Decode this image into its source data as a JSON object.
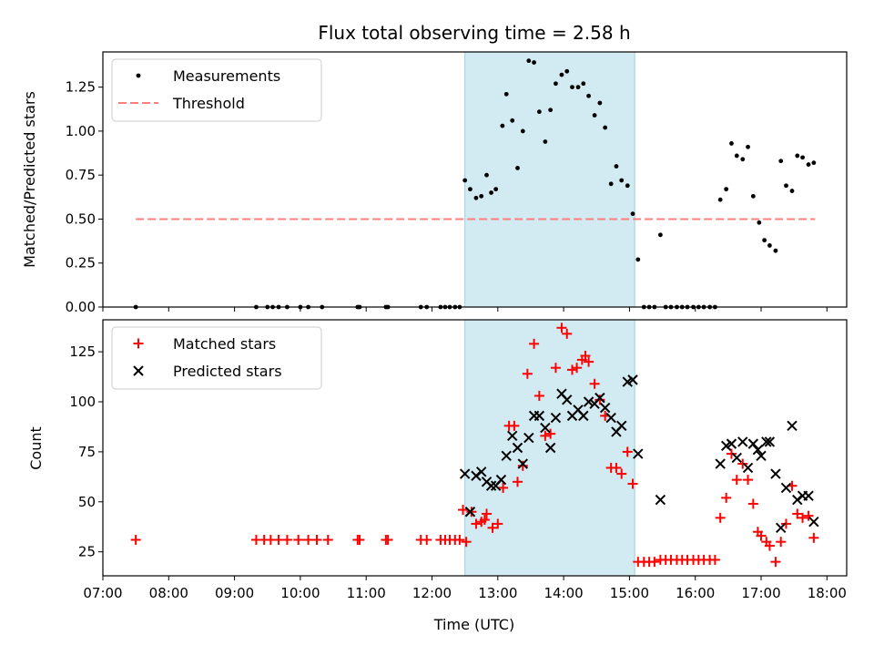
{
  "chart_data": {
    "type": "scatter",
    "title": "Flux total observing time = 2.58 h",
    "xlabel": "Time (UTC)",
    "x_tick_labels": [
      "07:00",
      "08:00",
      "09:00",
      "10:00",
      "11:00",
      "12:00",
      "13:00",
      "14:00",
      "15:00",
      "16:00",
      "17:00",
      "18:00"
    ],
    "x_ticks_hours": [
      7,
      8,
      9,
      10,
      11,
      12,
      13,
      14,
      15,
      16,
      17,
      18
    ],
    "xlim_hours": [
      7.0,
      18.3
    ],
    "shaded_span_hours": [
      12.5,
      15.08
    ],
    "shade_color": "#add8e6",
    "top_panel": {
      "ylabel": "Matched/Predicted stars",
      "ylim": [
        0,
        1.45
      ],
      "y_ticks": [
        0.0,
        0.25,
        0.5,
        0.75,
        1.0,
        1.25
      ],
      "y_tick_labels": [
        "0.00",
        "0.25",
        "0.50",
        "0.75",
        "1.00",
        "1.25"
      ],
      "legend": [
        "Measurements",
        "Threshold"
      ],
      "threshold": {
        "name": "Threshold",
        "y": 0.5,
        "x_range": [
          7.5,
          17.82
        ],
        "color": "#ff7f7f"
      },
      "measurements": {
        "name": "Measurements",
        "color": "#000000",
        "points": [
          [
            7.5,
            0
          ],
          [
            9.33,
            0
          ],
          [
            9.5,
            0
          ],
          [
            9.58,
            0
          ],
          [
            9.67,
            0
          ],
          [
            9.8,
            0
          ],
          [
            10.0,
            0
          ],
          [
            10.12,
            0
          ],
          [
            10.33,
            0
          ],
          [
            10.87,
            0
          ],
          [
            10.9,
            0
          ],
          [
            11.3,
            0
          ],
          [
            11.33,
            0
          ],
          [
            11.83,
            0
          ],
          [
            11.92,
            0
          ],
          [
            12.13,
            0
          ],
          [
            12.2,
            0
          ],
          [
            12.27,
            0
          ],
          [
            12.35,
            0
          ],
          [
            12.42,
            0
          ],
          [
            12.5,
            0.72
          ],
          [
            12.58,
            0.67
          ],
          [
            12.67,
            0.62
          ],
          [
            12.75,
            0.63
          ],
          [
            12.83,
            0.75
          ],
          [
            12.9,
            0.65
          ],
          [
            12.97,
            0.67
          ],
          [
            13.07,
            1.03
          ],
          [
            13.13,
            1.21
          ],
          [
            13.22,
            1.06
          ],
          [
            13.3,
            0.79
          ],
          [
            13.38,
            1.0
          ],
          [
            13.47,
            1.4
          ],
          [
            13.55,
            1.39
          ],
          [
            13.63,
            1.11
          ],
          [
            13.72,
            0.94
          ],
          [
            13.8,
            1.12
          ],
          [
            13.88,
            1.27
          ],
          [
            13.97,
            1.32
          ],
          [
            14.05,
            1.34
          ],
          [
            14.13,
            1.25
          ],
          [
            14.22,
            1.25
          ],
          [
            14.3,
            1.27
          ],
          [
            14.38,
            1.2
          ],
          [
            14.47,
            1.09
          ],
          [
            14.55,
            1.16
          ],
          [
            14.63,
            1.02
          ],
          [
            14.72,
            0.7
          ],
          [
            14.8,
            0.8
          ],
          [
            14.88,
            0.72
          ],
          [
            14.97,
            0.69
          ],
          [
            15.05,
            0.53
          ],
          [
            15.13,
            0.27
          ],
          [
            15.22,
            0
          ],
          [
            15.3,
            0
          ],
          [
            15.38,
            0
          ],
          [
            15.47,
            0.41
          ],
          [
            15.55,
            0
          ],
          [
            15.63,
            0
          ],
          [
            15.72,
            0
          ],
          [
            15.8,
            0
          ],
          [
            15.88,
            0
          ],
          [
            15.97,
            0
          ],
          [
            16.05,
            0
          ],
          [
            16.13,
            0
          ],
          [
            16.22,
            0
          ],
          [
            16.3,
            0
          ],
          [
            16.38,
            0.61
          ],
          [
            16.47,
            0.67
          ],
          [
            16.55,
            0.93
          ],
          [
            16.63,
            0.86
          ],
          [
            16.72,
            0.84
          ],
          [
            16.8,
            0.91
          ],
          [
            16.88,
            0.63
          ],
          [
            16.97,
            0.48
          ],
          [
            17.05,
            0.38
          ],
          [
            17.13,
            0.35
          ],
          [
            17.22,
            0.32
          ],
          [
            17.3,
            0.83
          ],
          [
            17.38,
            0.69
          ],
          [
            17.47,
            0.66
          ],
          [
            17.55,
            0.86
          ],
          [
            17.63,
            0.85
          ],
          [
            17.72,
            0.81
          ],
          [
            17.8,
            0.82
          ]
        ]
      }
    },
    "bottom_panel": {
      "ylabel": "Count",
      "ylim": [
        13,
        141
      ],
      "y_ticks": [
        25,
        50,
        75,
        100,
        125
      ],
      "y_tick_labels": [
        "25",
        "50",
        "75",
        "100",
        "125"
      ],
      "legend": [
        "Matched stars",
        "Predicted stars"
      ],
      "matched": {
        "name": "Matched stars",
        "color": "#ff0000",
        "points": [
          [
            7.5,
            31
          ],
          [
            9.33,
            31
          ],
          [
            9.45,
            31
          ],
          [
            9.55,
            31
          ],
          [
            9.67,
            31
          ],
          [
            9.8,
            31
          ],
          [
            9.97,
            31
          ],
          [
            10.12,
            31
          ],
          [
            10.25,
            31
          ],
          [
            10.42,
            31
          ],
          [
            10.87,
            31
          ],
          [
            10.9,
            31
          ],
          [
            11.3,
            31
          ],
          [
            11.33,
            31
          ],
          [
            11.83,
            31
          ],
          [
            11.92,
            31
          ],
          [
            12.13,
            31
          ],
          [
            12.2,
            31
          ],
          [
            12.27,
            31
          ],
          [
            12.35,
            31
          ],
          [
            12.42,
            31
          ],
          [
            12.47,
            46
          ],
          [
            12.52,
            30
          ],
          [
            12.6,
            45
          ],
          [
            12.67,
            39
          ],
          [
            12.75,
            40
          ],
          [
            12.8,
            41
          ],
          [
            12.83,
            44
          ],
          [
            12.92,
            37
          ],
          [
            13.0,
            39
          ],
          [
            13.08,
            57
          ],
          [
            13.17,
            88
          ],
          [
            13.25,
            88
          ],
          [
            13.3,
            60
          ],
          [
            13.38,
            68
          ],
          [
            13.45,
            114
          ],
          [
            13.55,
            129
          ],
          [
            13.63,
            103
          ],
          [
            13.72,
            83
          ],
          [
            13.8,
            84
          ],
          [
            13.88,
            117
          ],
          [
            13.97,
            137
          ],
          [
            14.05,
            134
          ],
          [
            14.13,
            116
          ],
          [
            14.2,
            117
          ],
          [
            14.28,
            121
          ],
          [
            14.33,
            123
          ],
          [
            14.38,
            120
          ],
          [
            14.47,
            109
          ],
          [
            14.55,
            101
          ],
          [
            14.63,
            93
          ],
          [
            14.72,
            67
          ],
          [
            14.8,
            67
          ],
          [
            14.88,
            64
          ],
          [
            14.97,
            75
          ],
          [
            15.05,
            59
          ],
          [
            15.13,
            20
          ],
          [
            15.22,
            20
          ],
          [
            15.3,
            20
          ],
          [
            15.38,
            20
          ],
          [
            15.47,
            21
          ],
          [
            15.55,
            21
          ],
          [
            15.63,
            21
          ],
          [
            15.72,
            21
          ],
          [
            15.8,
            21
          ],
          [
            15.88,
            21
          ],
          [
            15.97,
            21
          ],
          [
            16.05,
            21
          ],
          [
            16.13,
            21
          ],
          [
            16.22,
            21
          ],
          [
            16.3,
            21
          ],
          [
            16.38,
            42
          ],
          [
            16.47,
            52
          ],
          [
            16.55,
            74
          ],
          [
            16.63,
            61
          ],
          [
            16.72,
            69
          ],
          [
            16.8,
            61
          ],
          [
            16.88,
            49
          ],
          [
            16.95,
            35
          ],
          [
            17.0,
            33
          ],
          [
            17.08,
            30
          ],
          [
            17.13,
            28
          ],
          [
            17.22,
            20
          ],
          [
            17.3,
            30
          ],
          [
            17.38,
            39
          ],
          [
            17.47,
            58
          ],
          [
            17.55,
            44
          ],
          [
            17.63,
            42
          ],
          [
            17.72,
            43
          ],
          [
            17.8,
            32
          ]
        ]
      },
      "predicted": {
        "name": "Predicted stars",
        "color": "#000000",
        "points": [
          [
            12.5,
            64
          ],
          [
            12.58,
            45
          ],
          [
            12.67,
            63
          ],
          [
            12.75,
            65
          ],
          [
            12.83,
            60
          ],
          [
            12.9,
            58
          ],
          [
            12.97,
            58
          ],
          [
            13.05,
            61
          ],
          [
            13.13,
            73
          ],
          [
            13.22,
            83
          ],
          [
            13.3,
            77
          ],
          [
            13.38,
            69
          ],
          [
            13.47,
            82
          ],
          [
            13.55,
            93
          ],
          [
            13.63,
            93
          ],
          [
            13.72,
            87
          ],
          [
            13.8,
            77
          ],
          [
            13.88,
            92
          ],
          [
            13.97,
            104
          ],
          [
            14.05,
            101
          ],
          [
            14.13,
            93
          ],
          [
            14.22,
            96
          ],
          [
            14.3,
            93
          ],
          [
            14.38,
            100
          ],
          [
            14.47,
            99
          ],
          [
            14.55,
            102
          ],
          [
            14.63,
            97
          ],
          [
            14.72,
            92
          ],
          [
            14.8,
            85
          ],
          [
            14.88,
            88
          ],
          [
            14.97,
            110
          ],
          [
            15.05,
            111
          ],
          [
            15.13,
            74
          ],
          [
            15.47,
            51
          ],
          [
            16.38,
            69
          ],
          [
            16.47,
            78
          ],
          [
            16.55,
            79
          ],
          [
            16.63,
            72
          ],
          [
            16.72,
            80
          ],
          [
            16.8,
            67
          ],
          [
            16.88,
            79
          ],
          [
            16.95,
            76
          ],
          [
            17.0,
            73
          ],
          [
            17.08,
            80
          ],
          [
            17.13,
            80
          ],
          [
            17.22,
            64
          ],
          [
            17.3,
            37
          ],
          [
            17.38,
            57
          ],
          [
            17.47,
            88
          ],
          [
            17.55,
            51
          ],
          [
            17.63,
            53
          ],
          [
            17.72,
            53
          ],
          [
            17.8,
            40
          ]
        ]
      }
    }
  }
}
